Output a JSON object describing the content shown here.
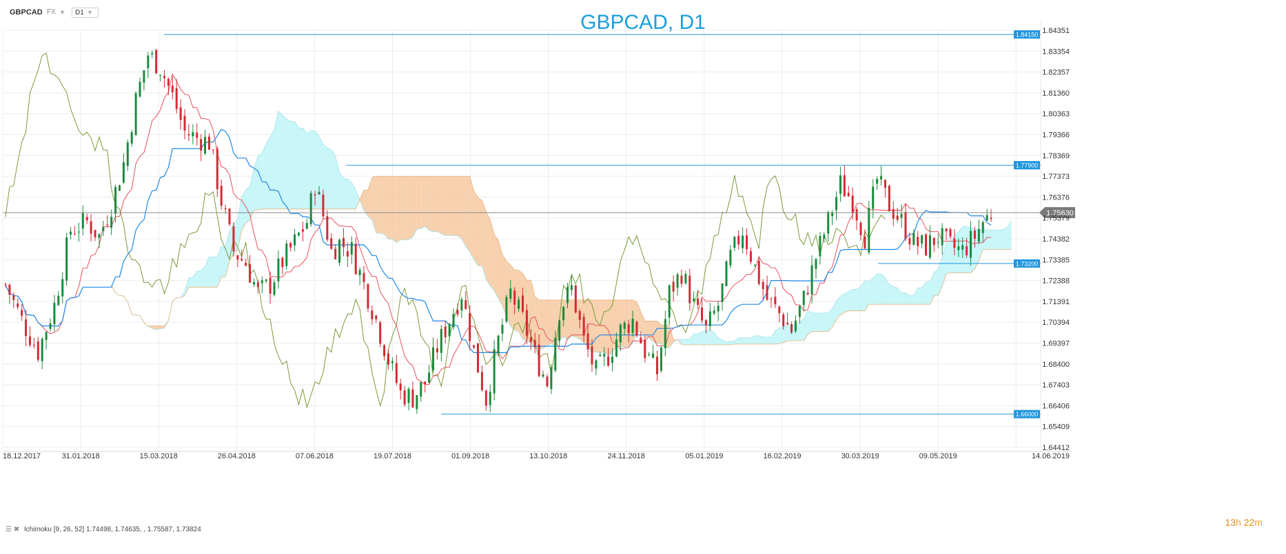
{
  "toolbar": {
    "symbol": "GBPCAD",
    "type": "FX",
    "timeframe": "D1"
  },
  "title": "GBPCAD, D1",
  "indicator_legend": {
    "name": "Ichimoku",
    "params": "[9, 26, 52]",
    "values": "1.74498,  1.74635,  ,  1.75587,  1.73824"
  },
  "timer": {
    "hours": "13",
    "h": "h",
    "minutes": "22",
    "m": "m"
  },
  "colors": {
    "up_candle": "#1b8a3c",
    "down_candle": "#d12b35",
    "tenkan": "#e8515b",
    "kijun": "#1e88e5",
    "chikou": "#7a9a3a",
    "cloud_bull": "#bff4f7",
    "cloud_bear": "#f6c9a0",
    "level_line": "#1e96e0",
    "price_line": "#888888"
  },
  "chart_data": {
    "type": "candlestick",
    "title": "GBPCAD, D1",
    "x_tick_labels": [
      "18.12.2017",
      "31.01.2018",
      "15.03.2018",
      "26.04.2018",
      "07.06.2018",
      "19.07.2018",
      "01.09.2018",
      "13.10.2018",
      "24.11.2018",
      "05.01.2019",
      "16.02.2019",
      "30.03.2019",
      "09.05.2019",
      "14.06.2019"
    ],
    "y_tick_labels": [
      "1.84351",
      "1.83354",
      "1.82357",
      "1.81360",
      "1.80363",
      "1.79366",
      "1.78369",
      "1.77373",
      "1.76376",
      "1.75379",
      "1.74382",
      "1.73385",
      "1.72388",
      "1.71391",
      "1.70394",
      "1.69397",
      "1.68400",
      "1.67403",
      "1.66406",
      "1.65409",
      "1.64412"
    ],
    "ylim": [
      1.64412,
      1.84351
    ],
    "grid": true,
    "horizontal_levels": [
      {
        "label": "1.84150",
        "value": 1.8415,
        "from": "15.03.2018"
      },
      {
        "label": "1.77900",
        "value": 1.779,
        "from": "07.06.2018"
      },
      {
        "label": "1.73200",
        "value": 1.732,
        "from": "30.03.2019"
      },
      {
        "label": "1.66000",
        "value": 1.66,
        "from": "01.09.2018"
      }
    ],
    "current_price": {
      "label": "1.75630",
      "value": 1.7563
    },
    "price_path": [
      [
        0,
        1.722
      ],
      [
        4,
        1.705
      ],
      [
        8,
        1.69
      ],
      [
        12,
        1.712
      ],
      [
        16,
        1.748
      ],
      [
        20,
        1.752
      ],
      [
        23,
        1.745
      ],
      [
        26,
        1.76
      ],
      [
        29,
        1.78
      ],
      [
        32,
        1.81
      ],
      [
        35,
        1.832
      ],
      [
        38,
        1.826
      ],
      [
        41,
        1.812
      ],
      [
        44,
        1.795
      ],
      [
        47,
        1.792
      ],
      [
        50,
        1.79
      ],
      [
        53,
        1.762
      ],
      [
        56,
        1.738
      ],
      [
        59,
        1.732
      ],
      [
        62,
        1.718
      ],
      [
        65,
        1.722
      ],
      [
        68,
        1.733
      ],
      [
        71,
        1.742
      ],
      [
        74,
        1.752
      ],
      [
        76,
        1.77
      ],
      [
        78,
        1.755
      ],
      [
        80,
        1.738
      ],
      [
        82,
        1.742
      ],
      [
        85,
        1.738
      ],
      [
        88,
        1.722
      ],
      [
        91,
        1.705
      ],
      [
        94,
        1.686
      ],
      [
        97,
        1.67
      ],
      [
        100,
        1.668
      ],
      [
        103,
        1.675
      ],
      [
        106,
        1.692
      ],
      [
        109,
        1.705
      ],
      [
        112,
        1.718
      ],
      [
        115,
        1.69
      ],
      [
        118,
        1.667
      ],
      [
        121,
        1.695
      ],
      [
        124,
        1.718
      ],
      [
        127,
        1.705
      ],
      [
        130,
        1.688
      ],
      [
        133,
        1.675
      ],
      [
        136,
        1.71
      ],
      [
        139,
        1.72
      ],
      [
        142,
        1.695
      ],
      [
        145,
        1.68
      ],
      [
        148,
        1.688
      ],
      [
        151,
        1.7
      ],
      [
        154,
        1.705
      ],
      [
        157,
        1.69
      ],
      [
        160,
        1.68
      ],
      [
        163,
        1.718
      ],
      [
        166,
        1.728
      ],
      [
        169,
        1.712
      ],
      [
        172,
        1.7
      ],
      [
        175,
        1.712
      ],
      [
        178,
        1.735
      ],
      [
        181,
        1.748
      ],
      [
        184,
        1.73
      ],
      [
        187,
        1.715
      ],
      [
        190,
        1.708
      ],
      [
        193,
        1.7
      ],
      [
        196,
        1.715
      ],
      [
        199,
        1.735
      ],
      [
        202,
        1.752
      ],
      [
        205,
        1.77
      ],
      [
        208,
        1.762
      ],
      [
        211,
        1.745
      ],
      [
        214,
        1.772
      ],
      [
        217,
        1.76
      ],
      [
        220,
        1.752
      ],
      [
        223,
        1.742
      ],
      [
        226,
        1.74
      ],
      [
        229,
        1.745
      ],
      [
        232,
        1.74
      ],
      [
        235,
        1.738
      ],
      [
        238,
        1.745
      ],
      [
        240,
        1.752
      ],
      [
        242,
        1.756
      ]
    ],
    "series": [
      {
        "name": "Ichimoku",
        "params": [
          9,
          26,
          52
        ],
        "legend_values": [
          1.74498,
          1.74635,
          null,
          1.75587,
          1.73824
        ]
      }
    ]
  }
}
